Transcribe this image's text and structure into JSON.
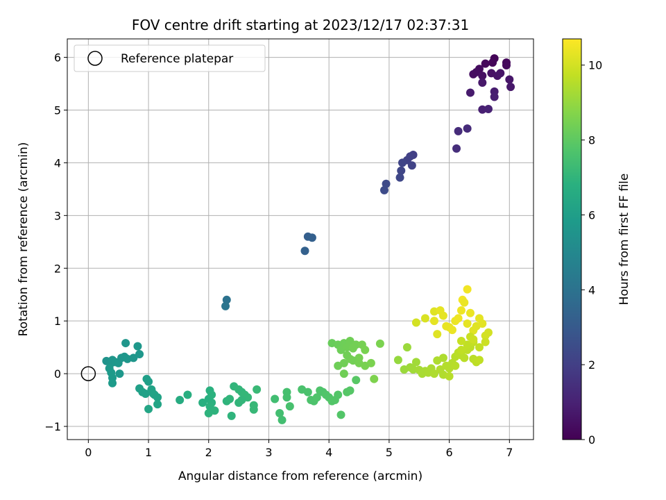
{
  "chart_data": {
    "type": "scatter",
    "title": "FOV centre drift starting at 2023/12/17 02:37:31",
    "xlabel": "Angular distance from reference (arcmin)",
    "ylabel": "Rotation from reference (arcmin)",
    "xlim": [
      -0.35,
      7.4
    ],
    "ylim": [
      -1.25,
      6.35
    ],
    "xticks": [
      0,
      1,
      2,
      3,
      4,
      5,
      6,
      7
    ],
    "yticks": [
      -1,
      0,
      1,
      2,
      3,
      4,
      5,
      6
    ],
    "grid": true,
    "colormap": "viridis",
    "colorbar": {
      "label": "Hours from first FF file",
      "range": [
        0,
        10.7
      ],
      "ticks": [
        0,
        2,
        4,
        6,
        8,
        10
      ]
    },
    "legend": {
      "placement": "top-left",
      "entries": [
        {
          "label": "Reference platepar",
          "marker": "open-circle",
          "x": 0,
          "y": 0
        }
      ]
    },
    "series": [
      {
        "points": [
          [
            6.75,
            5.98
          ],
          [
            6.6,
            5.88
          ],
          [
            6.5,
            5.78
          ],
          [
            6.4,
            5.68
          ],
          [
            6.45,
            5.72
          ],
          [
            6.55,
            5.65
          ],
          [
            6.7,
            5.7
          ],
          [
            6.8,
            5.65
          ],
          [
            6.85,
            5.7
          ],
          [
            6.95,
            5.9
          ],
          [
            6.95,
            5.85
          ],
          [
            6.72,
            5.9
          ],
          [
            6.55,
            5.52
          ],
          [
            6.35,
            5.33
          ],
          [
            6.75,
            5.35
          ],
          [
            6.75,
            5.25
          ],
          [
            7.0,
            5.58
          ],
          [
            7.02,
            5.44
          ],
          [
            6.55,
            5.01
          ],
          [
            6.65,
            5.02
          ],
          [
            6.3,
            4.65
          ],
          [
            6.15,
            4.6
          ],
          [
            6.12,
            4.27
          ],
          [
            5.4,
            4.15
          ],
          [
            5.35,
            4.12
          ],
          [
            5.3,
            4.05
          ],
          [
            5.38,
            3.95
          ],
          [
            5.22,
            4.0
          ],
          [
            5.2,
            3.85
          ],
          [
            5.18,
            3.72
          ],
          [
            4.95,
            3.6
          ],
          [
            4.92,
            3.48
          ],
          [
            3.65,
            2.6
          ],
          [
            3.72,
            2.58
          ],
          [
            3.6,
            2.33
          ],
          [
            2.3,
            1.4
          ],
          [
            2.28,
            1.28
          ],
          [
            0.3,
            0.24
          ],
          [
            0.38,
            0.2
          ],
          [
            0.4,
            0.26
          ],
          [
            0.45,
            0.22
          ],
          [
            0.5,
            0.2
          ],
          [
            0.55,
            0.3
          ],
          [
            0.6,
            0.32
          ],
          [
            0.65,
            0.28
          ],
          [
            0.75,
            0.3
          ],
          [
            0.82,
            0.52
          ],
          [
            0.62,
            0.58
          ],
          [
            0.85,
            0.37
          ],
          [
            0.52,
            0.0
          ],
          [
            0.35,
            0.1
          ],
          [
            0.4,
            -0.08
          ],
          [
            0.4,
            -0.18
          ],
          [
            0.38,
            0.02
          ],
          [
            0.97,
            -0.1
          ],
          [
            1.0,
            -0.15
          ],
          [
            0.85,
            -0.28
          ],
          [
            0.9,
            -0.35
          ],
          [
            0.95,
            -0.38
          ],
          [
            1.05,
            -0.3
          ],
          [
            1.08,
            -0.38
          ],
          [
            1.1,
            -0.4
          ],
          [
            1.15,
            -0.45
          ],
          [
            1.15,
            -0.58
          ],
          [
            1.0,
            -0.67
          ],
          [
            1.52,
            -0.5
          ],
          [
            1.65,
            -0.4
          ],
          [
            1.9,
            -0.55
          ],
          [
            2.0,
            -0.48
          ],
          [
            2.05,
            -0.55
          ],
          [
            2.02,
            -0.62
          ],
          [
            2.0,
            -0.75
          ],
          [
            2.02,
            -0.32
          ],
          [
            2.05,
            -0.4
          ],
          [
            2.1,
            -0.7
          ],
          [
            2.3,
            -0.52
          ],
          [
            2.38,
            -0.8
          ],
          [
            2.35,
            -0.48
          ],
          [
            2.42,
            -0.24
          ],
          [
            2.5,
            -0.3
          ],
          [
            2.55,
            -0.35
          ],
          [
            2.6,
            -0.4
          ],
          [
            2.65,
            -0.45
          ],
          [
            2.5,
            -0.55
          ],
          [
            2.55,
            -0.5
          ],
          [
            2.75,
            -0.6
          ],
          [
            2.75,
            -0.68
          ],
          [
            2.8,
            -0.3
          ],
          [
            3.1,
            -0.48
          ],
          [
            3.18,
            -0.75
          ],
          [
            3.22,
            -0.88
          ],
          [
            3.3,
            -0.35
          ],
          [
            3.3,
            -0.45
          ],
          [
            3.35,
            -0.62
          ],
          [
            3.55,
            -0.3
          ],
          [
            3.65,
            -0.35
          ],
          [
            3.7,
            -0.5
          ],
          [
            3.75,
            -0.52
          ],
          [
            3.8,
            -0.45
          ],
          [
            3.85,
            -0.32
          ],
          [
            3.9,
            -0.35
          ],
          [
            3.95,
            -0.4
          ],
          [
            4.0,
            -0.45
          ],
          [
            4.05,
            -0.52
          ],
          [
            4.1,
            -0.5
          ],
          [
            4.15,
            -0.4
          ],
          [
            4.2,
            -0.78
          ],
          [
            4.3,
            -0.35
          ],
          [
            4.35,
            -0.32
          ],
          [
            4.45,
            -0.12
          ],
          [
            4.05,
            0.58
          ],
          [
            4.15,
            0.55
          ],
          [
            4.2,
            0.45
          ],
          [
            4.25,
            0.58
          ],
          [
            4.3,
            0.5
          ],
          [
            4.35,
            0.62
          ],
          [
            4.4,
            0.48
          ],
          [
            4.45,
            0.55
          ],
          [
            4.5,
            0.3
          ],
          [
            4.55,
            0.55
          ],
          [
            4.15,
            0.15
          ],
          [
            4.25,
            0.2
          ],
          [
            4.35,
            0.28
          ],
          [
            4.3,
            0.35
          ],
          [
            4.4,
            0.25
          ],
          [
            4.5,
            0.2
          ],
          [
            4.25,
            0.0
          ],
          [
            4.6,
            0.45
          ],
          [
            4.7,
            0.2
          ],
          [
            4.75,
            -0.1
          ],
          [
            4.85,
            0.57
          ],
          [
            4.6,
            0.15
          ],
          [
            5.15,
            0.26
          ],
          [
            5.25,
            0.08
          ],
          [
            5.3,
            0.5
          ],
          [
            5.35,
            0.12
          ],
          [
            5.4,
            0.08
          ],
          [
            5.45,
            0.22
          ],
          [
            5.5,
            0.07
          ],
          [
            5.55,
            0.0
          ],
          [
            5.6,
            0.05
          ],
          [
            5.65,
            0.02
          ],
          [
            5.7,
            0.1
          ],
          [
            5.75,
            0.0
          ],
          [
            5.8,
            0.25
          ],
          [
            5.85,
            0.08
          ],
          [
            5.9,
            -0.02
          ],
          [
            5.95,
            0.15
          ],
          [
            6.0,
            0.1
          ],
          [
            6.05,
            0.2
          ],
          [
            6.0,
            -0.05
          ],
          [
            5.9,
            0.3
          ],
          [
            6.1,
            0.32
          ],
          [
            6.15,
            0.4
          ],
          [
            6.2,
            0.35
          ],
          [
            6.25,
            0.3
          ],
          [
            6.3,
            0.45
          ],
          [
            6.35,
            0.5
          ],
          [
            6.4,
            0.28
          ],
          [
            6.45,
            0.22
          ],
          [
            6.5,
            0.26
          ],
          [
            6.2,
            0.45
          ],
          [
            6.3,
            0.55
          ],
          [
            6.4,
            0.6
          ],
          [
            6.5,
            0.5
          ],
          [
            6.1,
            0.15
          ],
          [
            5.45,
            0.97
          ],
          [
            5.6,
            1.05
          ],
          [
            5.75,
            1.18
          ],
          [
            5.8,
            0.75
          ],
          [
            5.85,
            1.2
          ],
          [
            5.9,
            1.1
          ],
          [
            5.95,
            0.9
          ],
          [
            6.0,
            0.88
          ],
          [
            6.05,
            0.83
          ],
          [
            6.1,
            1.0
          ],
          [
            6.15,
            1.05
          ],
          [
            6.2,
            1.2
          ],
          [
            6.22,
            1.4
          ],
          [
            6.25,
            1.35
          ],
          [
            6.3,
            1.6
          ],
          [
            6.3,
            0.95
          ],
          [
            6.35,
            1.15
          ],
          [
            6.4,
            0.82
          ],
          [
            6.45,
            0.9
          ],
          [
            6.5,
            1.05
          ],
          [
            6.55,
            0.95
          ],
          [
            6.6,
            0.72
          ],
          [
            6.65,
            0.78
          ],
          [
            6.6,
            0.6
          ],
          [
            6.2,
            0.62
          ],
          [
            6.35,
            0.7
          ],
          [
            6.4,
            0.65
          ],
          [
            5.75,
            1.0
          ]
        ],
        "hours": [
          0.1,
          0.2,
          0.3,
          0.4,
          0.35,
          0.45,
          0.5,
          0.55,
          0.6,
          0.2,
          0.25,
          0.15,
          0.7,
          0.8,
          0.85,
          0.9,
          0.65,
          0.7,
          0.95,
          1.0,
          1.3,
          1.35,
          1.4,
          2.0,
          2.05,
          2.1,
          2.15,
          2.2,
          2.25,
          2.3,
          2.4,
          2.45,
          3.2,
          3.25,
          3.3,
          4.0,
          4.1,
          5.5,
          5.55,
          5.6,
          5.65,
          5.7,
          5.55,
          5.6,
          5.65,
          5.6,
          5.7,
          5.6,
          5.65,
          5.7,
          5.75,
          5.8,
          5.85,
          5.8,
          6.0,
          6.0,
          6.05,
          6.1,
          6.1,
          6.15,
          6.15,
          6.2,
          6.2,
          6.25,
          6.3,
          6.6,
          6.7,
          6.75,
          6.75,
          6.8,
          6.85,
          6.9,
          6.8,
          6.85,
          6.9,
          6.95,
          6.95,
          7.0,
          7.0,
          7.05,
          7.05,
          7.1,
          7.1,
          7.0,
          7.05,
          7.15,
          7.15,
          7.2,
          7.4,
          7.45,
          7.45,
          7.5,
          7.5,
          7.55,
          7.6,
          7.6,
          7.65,
          7.65,
          7.7,
          7.7,
          7.7,
          7.75,
          7.75,
          7.8,
          7.8,
          7.8,
          7.8,
          7.85,
          7.85,
          7.9,
          8.2,
          8.25,
          8.3,
          8.3,
          8.35,
          8.35,
          8.4,
          8.4,
          8.45,
          8.45,
          8.3,
          8.35,
          8.4,
          8.35,
          8.4,
          8.45,
          8.35,
          8.5,
          8.55,
          8.6,
          8.55,
          8.5,
          9.0,
          9.1,
          9.1,
          9.15,
          9.2,
          9.2,
          9.25,
          9.3,
          9.3,
          9.35,
          9.35,
          9.4,
          9.4,
          9.45,
          9.45,
          9.5,
          9.5,
          9.5,
          9.55,
          9.4,
          9.55,
          9.6,
          9.6,
          9.6,
          9.65,
          9.65,
          9.6,
          9.65,
          9.7,
          9.7,
          9.7,
          9.75,
          9.75,
          9.55,
          10.0,
          10.1,
          10.2,
          10.2,
          10.3,
          10.3,
          10.35,
          10.35,
          10.4,
          10.4,
          10.45,
          10.45,
          10.5,
          10.4,
          10.5,
          10.3,
          10.4,
          10.2,
          10.2,
          10.3,
          10.25,
          10.0,
          10.0,
          9.9,
          9.8,
          9.85,
          9.9,
          10.3
        ]
      }
    ]
  }
}
